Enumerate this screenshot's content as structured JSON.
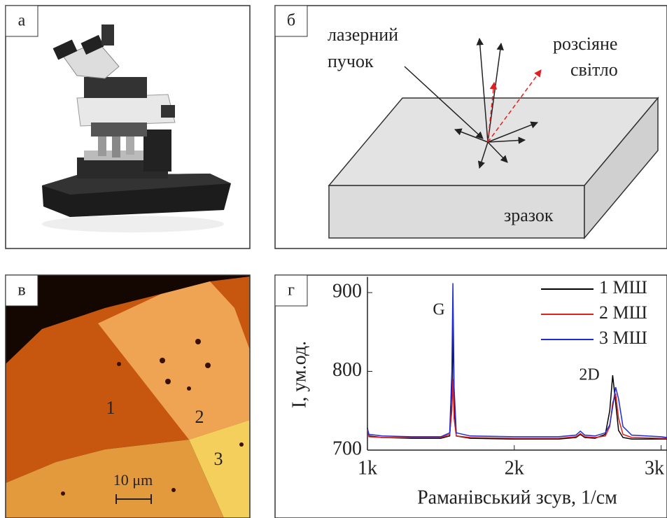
{
  "panels": {
    "a": {
      "label": "а"
    },
    "b": {
      "label": "б",
      "laser": [
        "лазерний",
        "пучок"
      ],
      "scattered": [
        "розсіяне",
        "світло"
      ],
      "sample": "зразок"
    },
    "c": {
      "label": "в",
      "regions": [
        "1",
        "2",
        "3"
      ],
      "scale": "10 μm"
    }
  },
  "chart_data": {
    "type": "line",
    "panel_label": "г",
    "x_label": "Раманівський зсув, 1/см",
    "y_label": "I, ум.од.",
    "annotations": [
      "G",
      "2D"
    ],
    "x": [
      1000,
      1010,
      1100,
      1300,
      1500,
      1560,
      1575,
      1582,
      1590,
      1605,
      1700,
      2000,
      2300,
      2420,
      2450,
      2480,
      2550,
      2620,
      2650,
      2670,
      2690,
      2710,
      2740,
      2800,
      3000,
      3040
    ],
    "series": [
      {
        "name": "1 МШ",
        "color": "#000000",
        "values": [
          728,
          718,
          716,
          715,
          715,
          718,
          760,
          860,
          760,
          718,
          715,
          714,
          714,
          716,
          720,
          716,
          715,
          720,
          750,
          795,
          760,
          725,
          716,
          714,
          714,
          714
        ]
      },
      {
        "name": "2 МШ",
        "color": "#e0201b",
        "values": [
          726,
          717,
          716,
          716,
          716,
          720,
          750,
          790,
          740,
          718,
          716,
          715,
          715,
          717,
          721,
          717,
          716,
          718,
          730,
          760,
          772,
          740,
          720,
          716,
          715,
          715
        ]
      },
      {
        "name": "3 МШ",
        "color": "#1f2bd6",
        "values": [
          727,
          720,
          718,
          717,
          717,
          722,
          800,
          912,
          780,
          722,
          718,
          717,
          717,
          719,
          724,
          719,
          718,
          722,
          732,
          755,
          780,
          765,
          730,
          719,
          717,
          716
        ]
      }
    ],
    "xlim": [
      1000,
      3040
    ],
    "ylim": [
      700,
      920
    ],
    "xticks": [
      {
        "value": 1000,
        "label": "1k"
      },
      {
        "value": 2000,
        "label": "2k"
      },
      {
        "value": 3000,
        "label": "3k"
      }
    ],
    "yticks": [
      700,
      800,
      900
    ],
    "legend": "upper right"
  }
}
